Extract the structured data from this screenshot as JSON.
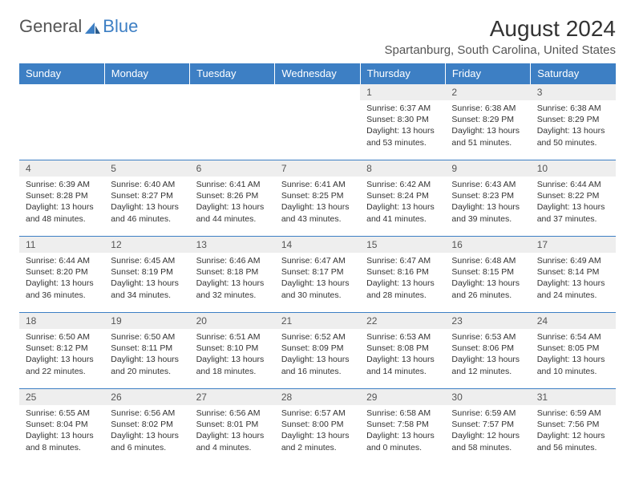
{
  "logo": {
    "text1": "General",
    "text2": "Blue"
  },
  "title": "August 2024",
  "location": "Spartanburg, South Carolina, United States",
  "colors": {
    "header_bg": "#3d7fc4",
    "header_text": "#ffffff",
    "daynum_bg": "#eeeeee",
    "border": "#3d7fc4",
    "text": "#333333"
  },
  "weekdays": [
    "Sunday",
    "Monday",
    "Tuesday",
    "Wednesday",
    "Thursday",
    "Friday",
    "Saturday"
  ],
  "weeks": [
    [
      null,
      null,
      null,
      null,
      {
        "n": "1",
        "sr": "6:37 AM",
        "ss": "8:30 PM",
        "dl": "13 hours and 53 minutes."
      },
      {
        "n": "2",
        "sr": "6:38 AM",
        "ss": "8:29 PM",
        "dl": "13 hours and 51 minutes."
      },
      {
        "n": "3",
        "sr": "6:38 AM",
        "ss": "8:29 PM",
        "dl": "13 hours and 50 minutes."
      }
    ],
    [
      {
        "n": "4",
        "sr": "6:39 AM",
        "ss": "8:28 PM",
        "dl": "13 hours and 48 minutes."
      },
      {
        "n": "5",
        "sr": "6:40 AM",
        "ss": "8:27 PM",
        "dl": "13 hours and 46 minutes."
      },
      {
        "n": "6",
        "sr": "6:41 AM",
        "ss": "8:26 PM",
        "dl": "13 hours and 44 minutes."
      },
      {
        "n": "7",
        "sr": "6:41 AM",
        "ss": "8:25 PM",
        "dl": "13 hours and 43 minutes."
      },
      {
        "n": "8",
        "sr": "6:42 AM",
        "ss": "8:24 PM",
        "dl": "13 hours and 41 minutes."
      },
      {
        "n": "9",
        "sr": "6:43 AM",
        "ss": "8:23 PM",
        "dl": "13 hours and 39 minutes."
      },
      {
        "n": "10",
        "sr": "6:44 AM",
        "ss": "8:22 PM",
        "dl": "13 hours and 37 minutes."
      }
    ],
    [
      {
        "n": "11",
        "sr": "6:44 AM",
        "ss": "8:20 PM",
        "dl": "13 hours and 36 minutes."
      },
      {
        "n": "12",
        "sr": "6:45 AM",
        "ss": "8:19 PM",
        "dl": "13 hours and 34 minutes."
      },
      {
        "n": "13",
        "sr": "6:46 AM",
        "ss": "8:18 PM",
        "dl": "13 hours and 32 minutes."
      },
      {
        "n": "14",
        "sr": "6:47 AM",
        "ss": "8:17 PM",
        "dl": "13 hours and 30 minutes."
      },
      {
        "n": "15",
        "sr": "6:47 AM",
        "ss": "8:16 PM",
        "dl": "13 hours and 28 minutes."
      },
      {
        "n": "16",
        "sr": "6:48 AM",
        "ss": "8:15 PM",
        "dl": "13 hours and 26 minutes."
      },
      {
        "n": "17",
        "sr": "6:49 AM",
        "ss": "8:14 PM",
        "dl": "13 hours and 24 minutes."
      }
    ],
    [
      {
        "n": "18",
        "sr": "6:50 AM",
        "ss": "8:12 PM",
        "dl": "13 hours and 22 minutes."
      },
      {
        "n": "19",
        "sr": "6:50 AM",
        "ss": "8:11 PM",
        "dl": "13 hours and 20 minutes."
      },
      {
        "n": "20",
        "sr": "6:51 AM",
        "ss": "8:10 PM",
        "dl": "13 hours and 18 minutes."
      },
      {
        "n": "21",
        "sr": "6:52 AM",
        "ss": "8:09 PM",
        "dl": "13 hours and 16 minutes."
      },
      {
        "n": "22",
        "sr": "6:53 AM",
        "ss": "8:08 PM",
        "dl": "13 hours and 14 minutes."
      },
      {
        "n": "23",
        "sr": "6:53 AM",
        "ss": "8:06 PM",
        "dl": "13 hours and 12 minutes."
      },
      {
        "n": "24",
        "sr": "6:54 AM",
        "ss": "8:05 PM",
        "dl": "13 hours and 10 minutes."
      }
    ],
    [
      {
        "n": "25",
        "sr": "6:55 AM",
        "ss": "8:04 PM",
        "dl": "13 hours and 8 minutes."
      },
      {
        "n": "26",
        "sr": "6:56 AM",
        "ss": "8:02 PM",
        "dl": "13 hours and 6 minutes."
      },
      {
        "n": "27",
        "sr": "6:56 AM",
        "ss": "8:01 PM",
        "dl": "13 hours and 4 minutes."
      },
      {
        "n": "28",
        "sr": "6:57 AM",
        "ss": "8:00 PM",
        "dl": "13 hours and 2 minutes."
      },
      {
        "n": "29",
        "sr": "6:58 AM",
        "ss": "7:58 PM",
        "dl": "13 hours and 0 minutes."
      },
      {
        "n": "30",
        "sr": "6:59 AM",
        "ss": "7:57 PM",
        "dl": "12 hours and 58 minutes."
      },
      {
        "n": "31",
        "sr": "6:59 AM",
        "ss": "7:56 PM",
        "dl": "12 hours and 56 minutes."
      }
    ]
  ],
  "labels": {
    "sunrise": "Sunrise:",
    "sunset": "Sunset:",
    "daylight": "Daylight:"
  }
}
